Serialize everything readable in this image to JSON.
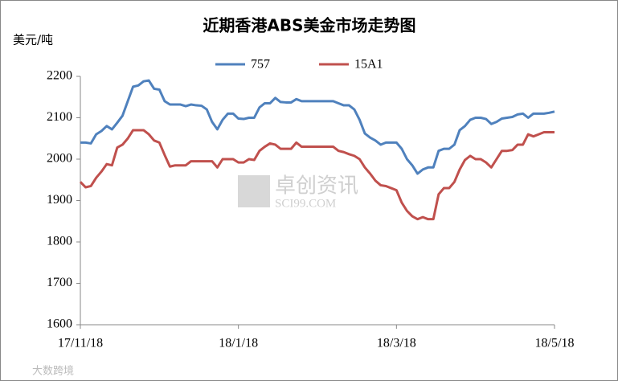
{
  "chart_data": {
    "type": "line",
    "title": "近期香港ABS美金市场走势图",
    "y_label": "美元/吨",
    "watermark": {
      "text": "卓创资讯",
      "site": "SCI99.COM"
    },
    "corner_watermark": "大数跨境",
    "categories": [
      "17/11/18",
      null,
      null,
      null,
      null,
      null,
      null,
      null,
      null,
      null,
      null,
      null,
      null,
      null,
      null,
      null,
      null,
      null,
      null,
      null,
      null,
      null,
      null,
      null,
      null,
      null,
      null,
      null,
      null,
      null,
      "18/1/18",
      null,
      null,
      null,
      null,
      null,
      null,
      null,
      null,
      null,
      null,
      null,
      null,
      null,
      null,
      null,
      null,
      null,
      null,
      null,
      null,
      null,
      null,
      null,
      null,
      null,
      null,
      null,
      null,
      null,
      "18/3/18",
      null,
      null,
      null,
      null,
      null,
      null,
      null,
      null,
      null,
      null,
      null,
      null,
      null,
      null,
      null,
      null,
      null,
      null,
      null,
      null,
      null,
      null,
      null,
      null,
      null,
      null,
      null,
      null,
      null,
      "18/5/18"
    ],
    "series": [
      {
        "name": "757",
        "color": "#4f81bd",
        "values": [
          2040,
          2040,
          2038,
          2060,
          2068,
          2080,
          2072,
          2088,
          2105,
          2140,
          2175,
          2178,
          2188,
          2190,
          2170,
          2168,
          2140,
          2132,
          2132,
          2132,
          2128,
          2132,
          2130,
          2129,
          2120,
          2090,
          2072,
          2095,
          2110,
          2110,
          2098,
          2097,
          2100,
          2100,
          2125,
          2135,
          2135,
          2148,
          2138,
          2137,
          2137,
          2145,
          2140,
          2140,
          2140,
          2140,
          2140,
          2140,
          2140,
          2135,
          2130,
          2130,
          2120,
          2095,
          2062,
          2052,
          2045,
          2035,
          2040,
          2040,
          2040,
          2025,
          2000,
          1985,
          1965,
          1975,
          1980,
          1980,
          2020,
          2025,
          2025,
          2035,
          2070,
          2080,
          2095,
          2100,
          2100,
          2097,
          2085,
          2090,
          2098,
          2100,
          2102,
          2108,
          2110,
          2100,
          2110,
          2110,
          2110,
          2112,
          2115
        ]
      },
      {
        "name": "15A1",
        "color": "#c0504d",
        "values": [
          1945,
          1932,
          1935,
          1955,
          1970,
          1988,
          1985,
          2028,
          2035,
          2050,
          2070,
          2070,
          2070,
          2060,
          2045,
          2040,
          2010,
          1982,
          1985,
          1985,
          1985,
          1995,
          1995,
          1995,
          1995,
          1995,
          1980,
          2000,
          2000,
          2000,
          1992,
          1992,
          2000,
          1998,
          2020,
          2030,
          2038,
          2035,
          2025,
          2025,
          2025,
          2040,
          2030,
          2030,
          2030,
          2030,
          2030,
          2030,
          2030,
          2020,
          2017,
          2012,
          2008,
          2000,
          1980,
          1965,
          1948,
          1937,
          1935,
          1930,
          1925,
          1895,
          1875,
          1862,
          1855,
          1860,
          1855,
          1855,
          1915,
          1930,
          1930,
          1945,
          1975,
          1998,
          2008,
          2000,
          2000,
          1992,
          1980,
          2000,
          2020,
          2020,
          2022,
          2035,
          2035,
          2060,
          2055,
          2060,
          2065,
          2065,
          2065
        ]
      }
    ],
    "ylim": [
      1600,
      2200
    ],
    "yticks": [
      1600,
      1700,
      1800,
      1900,
      2000,
      2100,
      2200
    ],
    "grid": false,
    "legend": "top"
  }
}
